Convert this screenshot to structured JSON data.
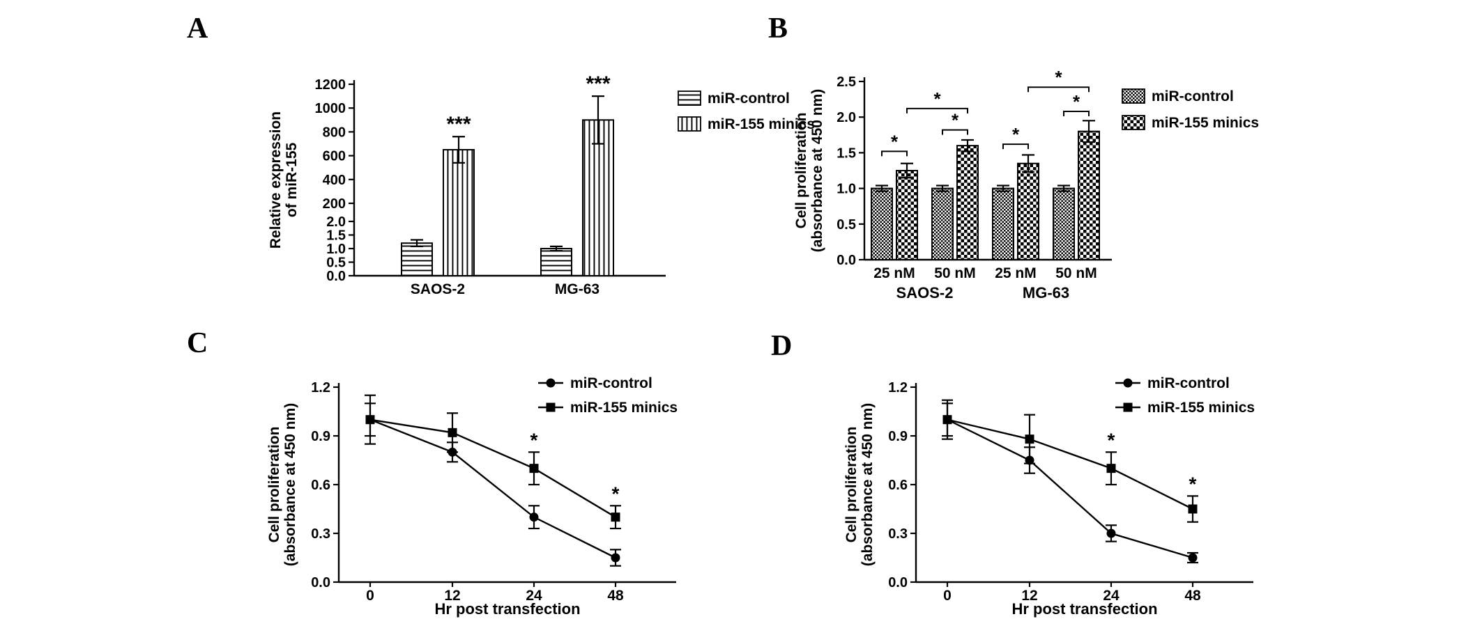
{
  "figure": {
    "background_color": "#ffffff",
    "foreground_color": "#000000"
  },
  "panels": [
    {
      "label": "A"
    },
    {
      "label": "B"
    },
    {
      "label": "C"
    },
    {
      "label": "D"
    }
  ],
  "chart_data": [
    {
      "panel": "A",
      "type": "bar",
      "ylabel_lines": [
        "Relative expression",
        "of miR-155"
      ],
      "categories": [
        "SAOS-2",
        "MG-63"
      ],
      "y_axis": {
        "broken": true,
        "lower": {
          "min": 0,
          "max": 2,
          "ticks": [
            "0.0",
            "0.5",
            "1.0",
            "1.5",
            "2.0"
          ]
        },
        "upper": {
          "min": 200,
          "max": 1200,
          "ticks": [
            "200",
            "400",
            "600",
            "800",
            "1000",
            "1200"
          ]
        }
      },
      "series": [
        {
          "name": "miR-control",
          "pattern": "pat-hlines",
          "values": [
            1.2,
            1.0
          ],
          "errors": [
            0.12,
            0.08
          ]
        },
        {
          "name": "miR-155 minics",
          "pattern": "pat-vlines",
          "values": [
            650,
            900
          ],
          "errors": [
            110,
            200
          ]
        }
      ],
      "annotations": [
        {
          "text": "***",
          "category": 0,
          "series": 1
        },
        {
          "text": "***",
          "category": 1,
          "series": 1
        }
      ],
      "legend_position": "right"
    },
    {
      "panel": "B",
      "type": "bar",
      "ylabel_lines": [
        "Cell proliferation",
        "(absorbance at 450 nm)"
      ],
      "categories": [
        "25 nM",
        "50 nM",
        "25 nM",
        "50 nM"
      ],
      "group_labels": [
        {
          "text": "SAOS-2",
          "from": 0,
          "to": 1
        },
        {
          "text": "MG-63",
          "from": 2,
          "to": 3
        }
      ],
      "y_axis": {
        "min": 0,
        "max": 2.5,
        "ticks": [
          "0.0",
          "0.5",
          "1.0",
          "1.5",
          "2.0",
          "2.5"
        ]
      },
      "series": [
        {
          "name": "miR-control",
          "pattern": "pat-fine",
          "values": [
            1.0,
            1.0,
            1.0,
            1.0
          ],
          "errors": [
            0.04,
            0.04,
            0.04,
            0.04
          ]
        },
        {
          "name": "miR-155 minics",
          "pattern": "pat-check",
          "values": [
            1.25,
            1.6,
            1.35,
            1.8
          ],
          "errors": [
            0.1,
            0.08,
            0.12,
            0.15
          ]
        }
      ],
      "brackets": [
        {
          "c1": 0,
          "s1": 0,
          "c2": 0,
          "s2": 1,
          "y": 1.52,
          "text": "*"
        },
        {
          "c1": 1,
          "s1": 0,
          "c2": 1,
          "s2": 1,
          "y": 1.82,
          "text": "*"
        },
        {
          "c1": 0,
          "s1": 1,
          "c2": 1,
          "s2": 1,
          "y": 2.12,
          "text": "*"
        },
        {
          "c1": 2,
          "s1": 0,
          "c2": 2,
          "s2": 1,
          "y": 1.62,
          "text": "*"
        },
        {
          "c1": 3,
          "s1": 0,
          "c2": 3,
          "s2": 1,
          "y": 2.08,
          "text": "*"
        },
        {
          "c1": 2,
          "s1": 1,
          "c2": 3,
          "s2": 1,
          "y": 2.42,
          "text": "*"
        }
      ],
      "legend_position": "right"
    },
    {
      "panel": "C",
      "type": "line",
      "ylabel_lines": [
        "Cell proliferation",
        "(absorbance at 450 nm)"
      ],
      "xlabel": "Hr post transfection",
      "x_ticks": [
        "0",
        "12",
        "24",
        "48"
      ],
      "y_axis": {
        "min": 0,
        "max": 1.2,
        "ticks": [
          "0.0",
          "0.3",
          "0.6",
          "0.9",
          "1.2"
        ]
      },
      "series": [
        {
          "name": "miR-control",
          "marker": "circle",
          "values": [
            1.0,
            0.8,
            0.4,
            0.15
          ],
          "errors": [
            0.15,
            0.06,
            0.07,
            0.05
          ]
        },
        {
          "name": "miR-155 minics",
          "marker": "square",
          "values": [
            1.0,
            0.92,
            0.7,
            0.4
          ],
          "errors": [
            0.1,
            0.12,
            0.1,
            0.07
          ]
        }
      ],
      "annotations": [
        {
          "text": "*",
          "x_index": 2,
          "series": 1
        },
        {
          "text": "*",
          "x_index": 3,
          "series": 1
        }
      ],
      "legend_position": "top-right"
    },
    {
      "panel": "D",
      "type": "line",
      "ylabel_lines": [
        "Cell proliferation",
        "(absorbance at 450 nm)"
      ],
      "xlabel": "Hr post transfection",
      "x_ticks": [
        "0",
        "12",
        "24",
        "48"
      ],
      "y_axis": {
        "min": 0,
        "max": 1.2,
        "ticks": [
          "0.0",
          "0.3",
          "0.6",
          "0.9",
          "1.2"
        ]
      },
      "series": [
        {
          "name": "miR-control",
          "marker": "circle",
          "values": [
            1.0,
            0.75,
            0.3,
            0.15
          ],
          "errors": [
            0.1,
            0.08,
            0.05,
            0.03
          ]
        },
        {
          "name": "miR-155 minics",
          "marker": "square",
          "values": [
            1.0,
            0.88,
            0.7,
            0.45
          ],
          "errors": [
            0.12,
            0.15,
            0.1,
            0.08
          ]
        }
      ],
      "annotations": [
        {
          "text": "*",
          "x_index": 2,
          "series": 1
        },
        {
          "text": "*",
          "x_index": 3,
          "series": 1
        }
      ],
      "legend_position": "top-right"
    }
  ]
}
